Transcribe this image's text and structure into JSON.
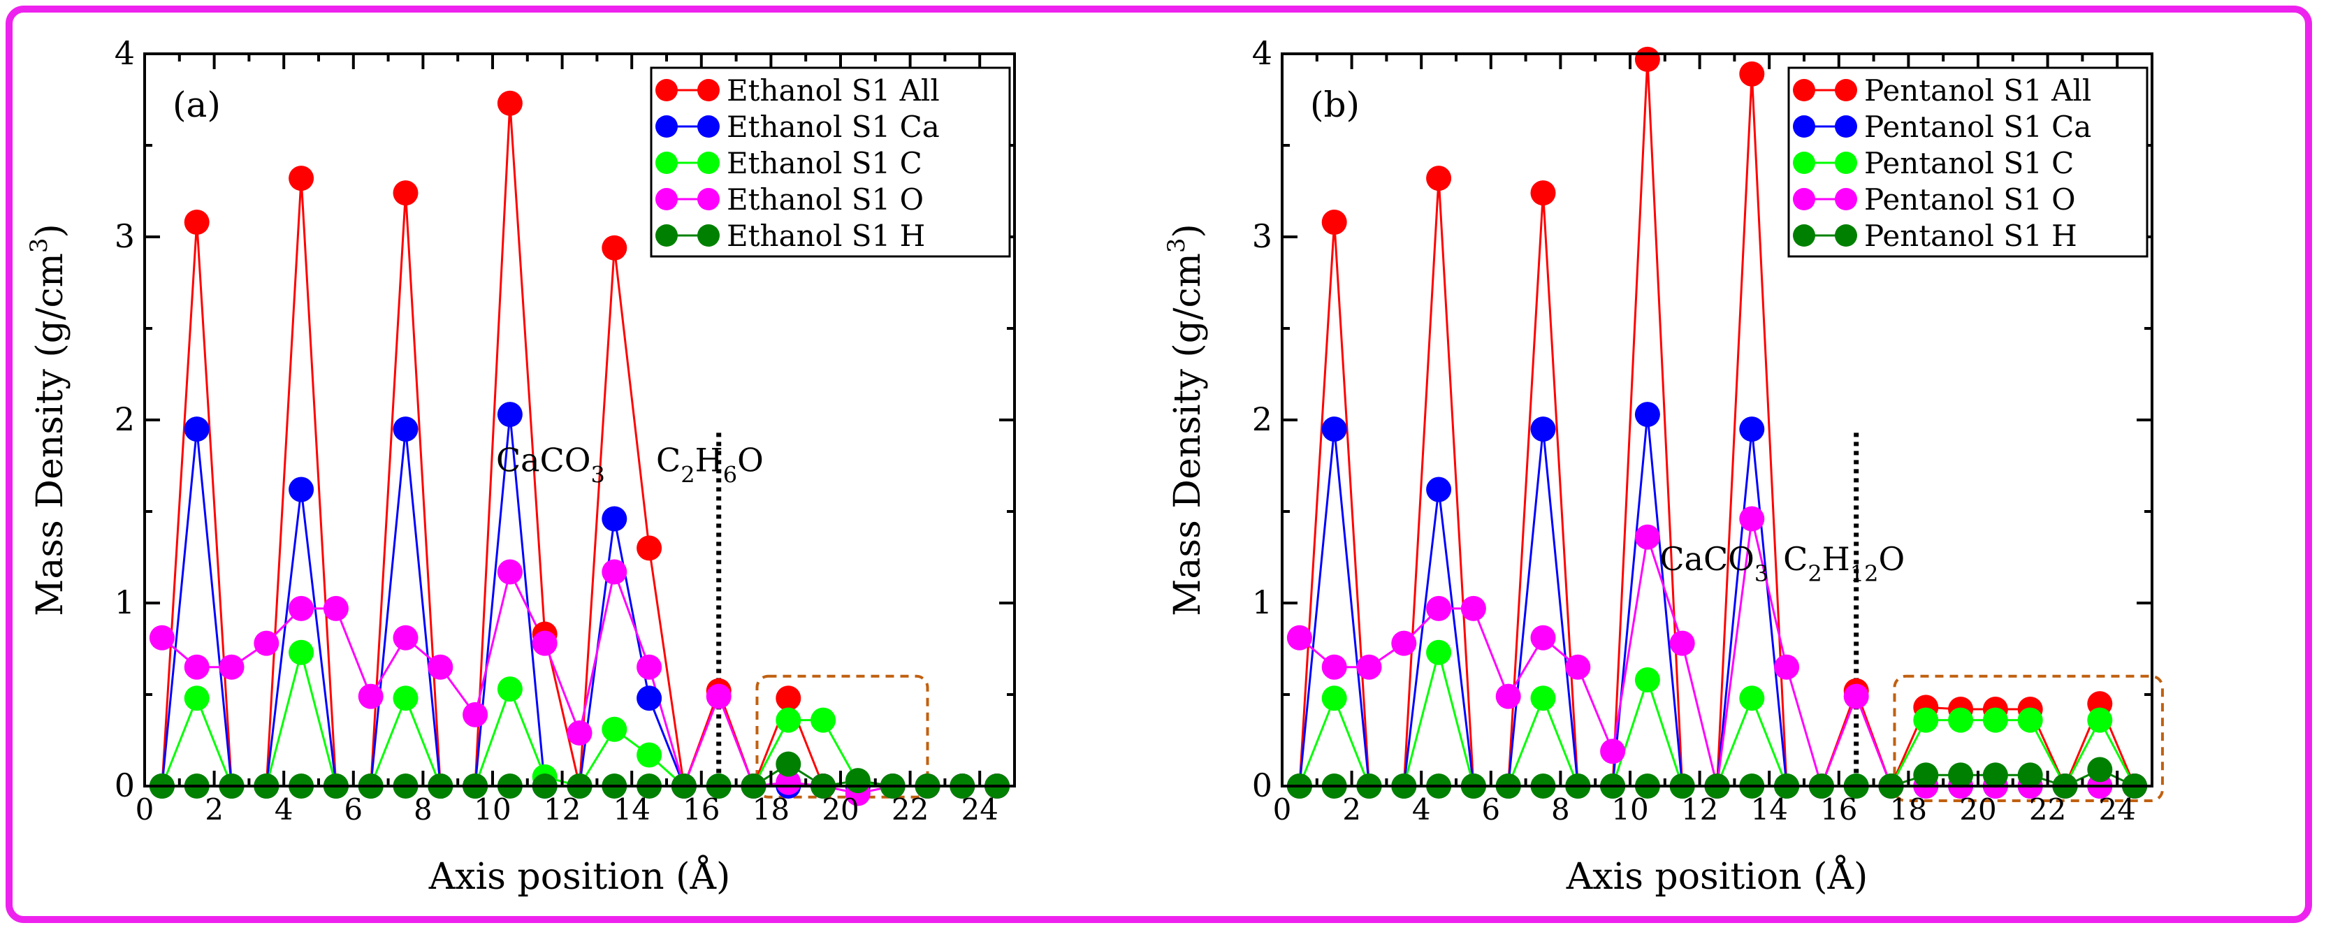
{
  "frame_color": "#ee22ee",
  "chart_data": [
    {
      "type": "line",
      "panel_label": "(a)",
      "xlabel": "Axis position (Å)",
      "ylabel_prefix": "Mass Density (g/cm",
      "ylabel_superscript": "3",
      "ylabel_suffix": ")",
      "xlim": [
        0,
        25
      ],
      "ylim": [
        0,
        4
      ],
      "xticks": [
        "0",
        "2",
        "4",
        "6",
        "8",
        "10",
        "12",
        "14",
        "16",
        "18",
        "20",
        "22",
        "24"
      ],
      "yticks": [
        "0",
        "1",
        "2",
        "3",
        "4"
      ],
      "legend_position": "top-right",
      "series": [
        {
          "name": "Ethanol S1 All",
          "color": "#ff0000",
          "x": [
            0.5,
            1.5,
            2.5,
            3.5,
            4.5,
            5.5,
            6.5,
            7.5,
            8.5,
            9.5,
            10.5,
            11.5,
            12.5,
            13.5,
            14.5,
            15.5,
            16.5,
            17.5,
            18.5,
            19.5,
            20.5,
            21.5,
            22.5,
            23.5,
            24.5
          ],
          "y": [
            0,
            3.08,
            0,
            0,
            3.32,
            0,
            0,
            3.24,
            0,
            0,
            3.73,
            0.83,
            0,
            2.94,
            1.3,
            0,
            0.52,
            0,
            0.48,
            0,
            0,
            0,
            0,
            0,
            0
          ]
        },
        {
          "name": "Ethanol S1 Ca",
          "color": "#0000ff",
          "x": [
            0.5,
            1.5,
            2.5,
            3.5,
            4.5,
            5.5,
            6.5,
            7.5,
            8.5,
            9.5,
            10.5,
            11.5,
            12.5,
            13.5,
            14.5,
            15.5,
            16.5,
            17.5,
            18.5,
            19.5,
            20.5,
            21.5,
            22.5,
            23.5,
            24.5
          ],
          "y": [
            0,
            1.95,
            0,
            0,
            1.62,
            0,
            0,
            1.95,
            0,
            0,
            2.03,
            0,
            0,
            1.46,
            0.48,
            0,
            0,
            0,
            0,
            0,
            0,
            0,
            0,
            0,
            0
          ]
        },
        {
          "name": "Ethanol S1 C",
          "color": "#00ff00",
          "x": [
            0.5,
            1.5,
            2.5,
            3.5,
            4.5,
            5.5,
            6.5,
            7.5,
            8.5,
            9.5,
            10.5,
            11.5,
            12.5,
            13.5,
            14.5,
            15.5,
            16.5,
            17.5,
            18.5,
            19.5,
            20.5,
            21.5,
            22.5,
            23.5,
            24.5
          ],
          "y": [
            0,
            0.48,
            0,
            0,
            0.73,
            0,
            0,
            0.48,
            0,
            0,
            0.53,
            0.05,
            0,
            0.31,
            0.17,
            0,
            0,
            0,
            0.36,
            0.36,
            0.02,
            0,
            0,
            0,
            0
          ]
        },
        {
          "name": "Ethanol S1 O",
          "color": "#ff00ff",
          "x": [
            0.5,
            1.5,
            2.5,
            3.5,
            4.5,
            5.5,
            6.5,
            7.5,
            8.5,
            9.5,
            10.5,
            11.5,
            12.5,
            13.5,
            14.5,
            15.5,
            16.5,
            17.5,
            18.5,
            19.5,
            20.5,
            21.5,
            22.5,
            23.5,
            24.5
          ],
          "y": [
            0.81,
            0.65,
            0.65,
            0.78,
            0.97,
            0.97,
            0.49,
            0.81,
            0.65,
            0.39,
            1.17,
            0.78,
            0.29,
            1.17,
            0.65,
            0,
            0.49,
            0,
            0.02,
            0,
            -0.04,
            0,
            0,
            0,
            0
          ]
        },
        {
          "name": "Ethanol S1 H",
          "color": "#008000",
          "x": [
            0.5,
            1.5,
            2.5,
            3.5,
            4.5,
            5.5,
            6.5,
            7.5,
            8.5,
            9.5,
            10.5,
            11.5,
            12.5,
            13.5,
            14.5,
            15.5,
            16.5,
            17.5,
            18.5,
            19.5,
            20.5,
            21.5,
            22.5,
            23.5,
            24.5
          ],
          "y": [
            0,
            0,
            0,
            0,
            0,
            0,
            0,
            0,
            0,
            0,
            0,
            0,
            0,
            0,
            0,
            0,
            0,
            0,
            0.12,
            0,
            0.03,
            0,
            0,
            0,
            0
          ]
        }
      ],
      "annotations": [
        {
          "id": "caco3",
          "base": "CaCO",
          "sub": "3",
          "tail": "",
          "x": 10.1,
          "y": 1.72
        },
        {
          "id": "formula",
          "base": "C",
          "sub": "2",
          "mid": "H",
          "sub2": "6",
          "tail": "O",
          "x": 14.7,
          "y": 1.72
        }
      ],
      "interface_line_x": 16.5,
      "highlight_box": {
        "x0": 17.6,
        "x1": 22.5,
        "y0": -0.06,
        "y1": 0.6
      }
    },
    {
      "type": "line",
      "panel_label": "(b)",
      "xlabel": "Axis position (Å)",
      "ylabel_prefix": "Mass Density (g/cm",
      "ylabel_superscript": "3",
      "ylabel_suffix": ")",
      "xlim": [
        0,
        25
      ],
      "ylim": [
        0,
        4
      ],
      "xticks": [
        "0",
        "2",
        "4",
        "6",
        "8",
        "10",
        "12",
        "14",
        "16",
        "18",
        "20",
        "22",
        "24"
      ],
      "yticks": [
        "0",
        "1",
        "2",
        "3",
        "4"
      ],
      "legend_position": "top-right",
      "series": [
        {
          "name": "Pentanol S1 All",
          "color": "#ff0000",
          "x": [
            0.5,
            1.5,
            2.5,
            3.5,
            4.5,
            5.5,
            6.5,
            7.5,
            8.5,
            9.5,
            10.5,
            11.5,
            12.5,
            13.5,
            14.5,
            15.5,
            16.5,
            17.5,
            18.5,
            19.5,
            20.5,
            21.5,
            22.5,
            23.5,
            24.5
          ],
          "y": [
            0,
            3.08,
            0,
            0,
            3.32,
            0,
            0,
            3.24,
            0,
            0,
            3.97,
            0,
            0,
            3.89,
            0,
            0,
            0.52,
            0,
            0.43,
            0.42,
            0.42,
            0.42,
            0,
            0.45,
            0
          ]
        },
        {
          "name": "Pentanol S1 Ca",
          "color": "#0000ff",
          "x": [
            0.5,
            1.5,
            2.5,
            3.5,
            4.5,
            5.5,
            6.5,
            7.5,
            8.5,
            9.5,
            10.5,
            11.5,
            12.5,
            13.5,
            14.5,
            15.5,
            16.5,
            17.5,
            18.5,
            19.5,
            20.5,
            21.5,
            22.5,
            23.5,
            24.5
          ],
          "y": [
            0,
            1.95,
            0,
            0,
            1.62,
            0,
            0,
            1.95,
            0,
            0,
            2.03,
            0,
            0,
            1.95,
            0,
            0,
            0,
            0,
            0,
            0,
            0,
            0,
            0,
            0,
            0
          ]
        },
        {
          "name": "Pentanol S1 C",
          "color": "#00ff00",
          "x": [
            0.5,
            1.5,
            2.5,
            3.5,
            4.5,
            5.5,
            6.5,
            7.5,
            8.5,
            9.5,
            10.5,
            11.5,
            12.5,
            13.5,
            14.5,
            15.5,
            16.5,
            17.5,
            18.5,
            19.5,
            20.5,
            21.5,
            22.5,
            23.5,
            24.5
          ],
          "y": [
            0,
            0.48,
            0,
            0,
            0.73,
            0,
            0,
            0.48,
            0,
            0,
            0.58,
            0,
            0,
            0.48,
            0,
            0,
            0,
            0,
            0.36,
            0.36,
            0.36,
            0.36,
            0,
            0.36,
            0
          ]
        },
        {
          "name": "Pentanol S1 O",
          "color": "#ff00ff",
          "x": [
            0.5,
            1.5,
            2.5,
            3.5,
            4.5,
            5.5,
            6.5,
            7.5,
            8.5,
            9.5,
            10.5,
            11.5,
            12.5,
            13.5,
            14.5,
            15.5,
            16.5,
            17.5,
            18.5,
            19.5,
            20.5,
            21.5,
            22.5,
            23.5,
            24.5
          ],
          "y": [
            0.81,
            0.65,
            0.65,
            0.78,
            0.97,
            0.97,
            0.49,
            0.81,
            0.65,
            0.19,
            1.36,
            0.78,
            0,
            1.46,
            0.65,
            0,
            0.49,
            0,
            0,
            0,
            0,
            0,
            0,
            0,
            0
          ]
        },
        {
          "name": "Pentanol S1 H",
          "color": "#008000",
          "x": [
            0.5,
            1.5,
            2.5,
            3.5,
            4.5,
            5.5,
            6.5,
            7.5,
            8.5,
            9.5,
            10.5,
            11.5,
            12.5,
            13.5,
            14.5,
            15.5,
            16.5,
            17.5,
            18.5,
            19.5,
            20.5,
            21.5,
            22.5,
            23.5,
            24.5
          ],
          "y": [
            0,
            0,
            0,
            0,
            0,
            0,
            0,
            0,
            0,
            0,
            0,
            0,
            0,
            0,
            0,
            0,
            0,
            0,
            0.06,
            0.06,
            0.06,
            0.06,
            0,
            0.09,
            0
          ]
        }
      ],
      "annotations": [
        {
          "id": "caco3",
          "base": "CaCO",
          "sub": "3",
          "tail": "",
          "x": 10.85,
          "y": 1.18
        },
        {
          "id": "formula",
          "base": "C",
          "sub": "2",
          "mid": "H",
          "sub2": "12",
          "tail": "O",
          "x": 14.4,
          "y": 1.18
        }
      ],
      "interface_line_x": 16.5,
      "highlight_box": {
        "x0": 17.6,
        "x1": 25.3,
        "y0": -0.08,
        "y1": 0.6
      }
    }
  ]
}
